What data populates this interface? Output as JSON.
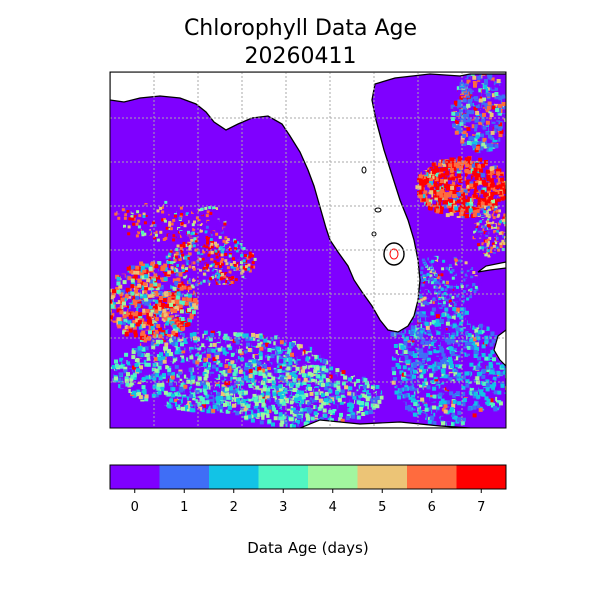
{
  "chart_data": {
    "type": "heatmap",
    "title": "Chlorophyll Data Age",
    "subtitle": "20260411",
    "colorbar": {
      "label": "Data Age (days)",
      "ticks": [
        "0",
        "1",
        "2",
        "3",
        "4",
        "5",
        "6",
        "7"
      ],
      "values": [
        0,
        1,
        2,
        3,
        4,
        5,
        6,
        7
      ],
      "colors": [
        "#7f00ff",
        "#3f6ef6",
        "#12c3e6",
        "#51f6c2",
        "#a2f69f",
        "#ecc476",
        "#ff6b3e",
        "#ff0000"
      ]
    },
    "land_color": "#ffffff",
    "coastline_color": "#000000",
    "grid": true,
    "map_region": "Florida and Gulf of Mexico"
  }
}
